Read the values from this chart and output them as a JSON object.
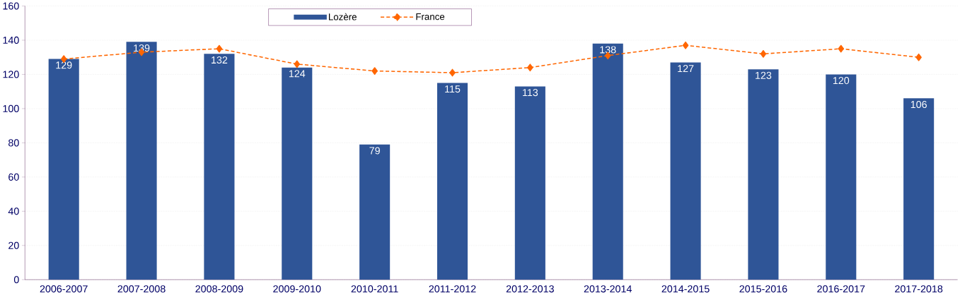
{
  "chart_data": {
    "type": "bar",
    "categories": [
      "2006-2007",
      "2007-2008",
      "2008-2009",
      "2009-2010",
      "2010-2011",
      "2011-2012",
      "2012-2013",
      "2013-2014",
      "2014-2015",
      "2015-2016",
      "2016-2017",
      "2017-2018"
    ],
    "series": [
      {
        "name": "Lozère",
        "color": "#2f5597",
        "values": [
          129,
          139,
          132,
          124,
          79,
          115,
          113,
          138,
          127,
          123,
          120,
          106
        ],
        "value_labels": [
          "129",
          "139",
          "132",
          "124",
          "79",
          "115",
          "113",
          "138",
          "127",
          "123",
          "120",
          "106"
        ]
      },
      {
        "name": "France",
        "type": "line",
        "color": "#ff6600",
        "marker": "diamond",
        "line_style": "dashed",
        "values": [
          129,
          133,
          135,
          126,
          122,
          121,
          124,
          131,
          137,
          132,
          135,
          130
        ]
      }
    ],
    "ylim": [
      0,
      160
    ],
    "yticks": [
      0,
      20,
      40,
      60,
      80,
      100,
      120,
      140,
      160
    ],
    "grid": "y",
    "legend": "top"
  }
}
